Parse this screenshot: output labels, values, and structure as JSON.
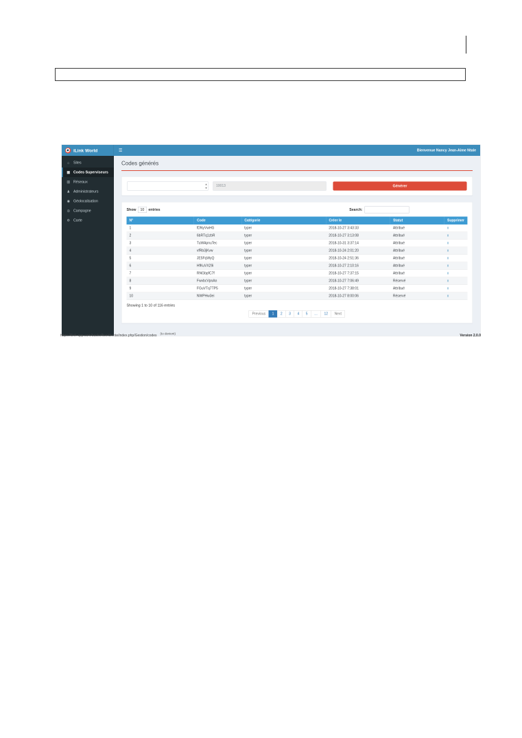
{
  "app": {
    "header": {
      "logo": "iLink World",
      "menu_icon": "☰",
      "welcome": "Bienvenue Nancy Jean-Aime Ntale"
    },
    "icons": {
      "spinner_up": "▴",
      "spinner_down": "▾"
    },
    "sidebar": {
      "items": [
        {
          "icon": "⌂",
          "label": "Sites",
          "active": false
        },
        {
          "icon": "▦",
          "label": "Codes Superviseurs",
          "active": true
        },
        {
          "icon": "▥",
          "label": "Réseaux",
          "active": false
        },
        {
          "icon": "♟",
          "label": "Administrateurs",
          "active": false
        },
        {
          "icon": "◉",
          "label": "Géolocalisation",
          "active": false
        },
        {
          "icon": "◎",
          "label": "Campagne",
          "active": false
        },
        {
          "icon": "⚙",
          "label": "Carte",
          "active": false
        }
      ]
    },
    "content": {
      "title": "Codes générés",
      "form": {
        "code_value": "10013",
        "generate_label": "Générer"
      },
      "table_controls": {
        "show_label": "Show",
        "page_size": "10",
        "entries_label": "entries",
        "search_label": "Search:"
      },
      "table": {
        "headers": [
          "N°",
          "Code",
          "Catégorie",
          "Créer le",
          "Statut",
          "Supprimer"
        ],
        "delete_label": "x",
        "rows": [
          {
            "n": "1",
            "code": "fDNyVwHG",
            "category": "typer",
            "created": "2018-10-27 3:43:33",
            "status": "Attribué"
          },
          {
            "n": "2",
            "code": "6bRTq1zbR",
            "category": "typer",
            "created": "2018-10-27 3:13:08",
            "status": "Attribué"
          },
          {
            "n": "3",
            "code": "TuWApnuTec",
            "category": "typer",
            "created": "2018-10-31 3:37:14",
            "status": "Attribué"
          },
          {
            "n": "4",
            "code": "vfRb3jKvw",
            "category": "typer",
            "created": "2018-10-24 2:01:20",
            "status": "Attribué"
          },
          {
            "n": "5",
            "code": "JE5FqWyQ",
            "category": "typer",
            "created": "2018-10-24 2:51:36",
            "status": "Attribué"
          },
          {
            "n": "6",
            "code": "HfKuVX29i",
            "category": "typer",
            "created": "2018-10-27 2:10:16",
            "status": "Attribué"
          },
          {
            "n": "7",
            "code": "RNGbpfC7f",
            "category": "typer",
            "created": "2018-10-27 7:37:15",
            "status": "Attribué"
          },
          {
            "n": "8",
            "code": "FwvbcVpnAn",
            "category": "typer",
            "created": "2018-10-27 7:06:49",
            "status": "Réservé"
          },
          {
            "n": "9",
            "code": "FGuVTq7TP5",
            "category": "typer",
            "created": "2018-10-27 7:38:01",
            "status": "Attribué"
          },
          {
            "n": "10",
            "code": "NWPHw3ei",
            "category": "typer",
            "created": "2018-10-27 8:00:06",
            "status": "Réservé"
          }
        ]
      },
      "summary": "Showing 1 to 10 of 116 entries",
      "pagination": {
        "previous": "Previous",
        "next": "Next",
        "pages": [
          {
            "label": "1",
            "active": true
          },
          {
            "label": "2",
            "active": false
          },
          {
            "label": "3",
            "active": false
          },
          {
            "label": "4",
            "active": false
          },
          {
            "label": "5",
            "active": false
          },
          {
            "label": "…",
            "active": false
          },
          {
            "label": "12",
            "active": false
          }
        ]
      }
    }
  },
  "statusbar": {
    "url": "https://ilink-app.com/backoffice/cliente/index.php/Gestion/codes",
    "annotation": "(to devient)",
    "version": "Version 2.0.0"
  }
}
